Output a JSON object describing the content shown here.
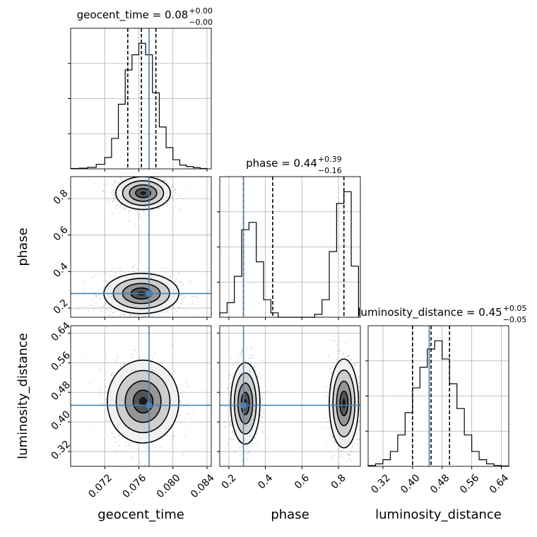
{
  "chart_data": {
    "type": "corner",
    "parameters": [
      "geocent_time",
      "phase",
      "luminosity_distance"
    ],
    "truth": {
      "geocent_time": 0.0772,
      "phase": 0.28,
      "luminosity_distance": 0.445
    },
    "diagonal": [
      {
        "param": "geocent_time",
        "title_prefix": "geocent_time = ",
        "title_value": "0.08",
        "title_plus": "+0.00",
        "title_minus": "−0.00",
        "quantiles": [
          0.0747,
          0.0763,
          0.078
        ],
        "xlim": [
          0.068,
          0.0845
        ],
        "bin_edges": [
          0.068,
          0.069,
          0.07,
          0.071,
          0.072,
          0.0728,
          0.0736,
          0.0744,
          0.0752,
          0.076,
          0.0768,
          0.0776,
          0.0784,
          0.0792,
          0.08,
          0.0808,
          0.0816,
          0.0824,
          0.0832,
          0.084
        ],
        "counts": [
          0.5,
          1,
          2,
          6,
          15,
          40,
          85,
          130,
          150,
          165,
          150,
          100,
          55,
          28,
          12,
          5,
          3,
          1.5,
          0.5
        ]
      },
      {
        "param": "phase",
        "title_prefix": "phase = ",
        "title_value": "0.44",
        "title_plus": "+0.39",
        "title_minus": "−0.16",
        "quantiles": [
          0.28,
          0.44,
          0.83
        ],
        "xlim": [
          0.15,
          0.92
        ],
        "bin_edges": [
          0.15,
          0.19,
          0.23,
          0.27,
          0.31,
          0.35,
          0.39,
          0.43,
          0.47,
          0.51,
          0.55,
          0.59,
          0.63,
          0.67,
          0.71,
          0.75,
          0.79,
          0.83,
          0.87,
          0.91
        ],
        "counts": [
          3,
          10,
          28,
          60,
          65,
          38,
          12,
          3,
          0,
          0,
          0,
          0,
          0,
          2,
          12,
          45,
          78,
          86,
          35
        ]
      },
      {
        "param": "luminosity_distance",
        "title_prefix": "luminosity_distance = ",
        "title_value": "0.45",
        "title_plus": "+0.05",
        "title_minus": "−0.05",
        "quantiles": [
          0.4,
          0.45,
          0.5
        ],
        "xlim": [
          0.28,
          0.66
        ],
        "bin_edges": [
          0.28,
          0.3,
          0.32,
          0.34,
          0.36,
          0.38,
          0.4,
          0.42,
          0.44,
          0.46,
          0.48,
          0.5,
          0.52,
          0.54,
          0.56,
          0.58,
          0.6,
          0.62,
          0.64,
          0.66
        ],
        "counts": [
          1,
          3,
          8,
          18,
          38,
          65,
          95,
          120,
          142,
          152,
          130,
          100,
          70,
          38,
          18,
          8,
          3,
          1,
          0.5
        ]
      }
    ],
    "panels": [
      {
        "x": "geocent_time",
        "y": "phase",
        "blobs": [
          [
            0.0765,
            0.83,
            0.0016,
            0.045
          ],
          [
            0.0763,
            0.28,
            0.0022,
            0.055
          ]
        ]
      },
      {
        "x": "geocent_time",
        "y": "luminosity_distance",
        "blobs": [
          [
            0.0765,
            0.455,
            0.0021,
            0.056
          ]
        ]
      },
      {
        "x": "phase",
        "y": "luminosity_distance",
        "blobs": [
          [
            0.29,
            0.45,
            0.04,
            0.055
          ],
          [
            0.83,
            0.45,
            0.04,
            0.06
          ]
        ]
      }
    ],
    "axes": {
      "geocent_time": {
        "label": "geocent_time",
        "lim": [
          0.068,
          0.0845
        ],
        "ticks": [
          0.072,
          0.076,
          0.08,
          0.084
        ],
        "tick_labels": [
          "0.072",
          "0.076",
          "0.080",
          "0.084"
        ]
      },
      "phase": {
        "label": "phase",
        "lim": [
          0.15,
          0.92
        ],
        "ticks": [
          0.2,
          0.4,
          0.6,
          0.8
        ],
        "tick_labels": [
          "0.2",
          "0.4",
          "0.6",
          "0.8"
        ]
      },
      "luminosity_distance": {
        "label": "luminosity_distance",
        "lim": [
          0.28,
          0.66
        ],
        "ticks": [
          0.32,
          0.4,
          0.48,
          0.56,
          0.64
        ],
        "tick_labels": [
          "0.32",
          "0.40",
          "0.48",
          "0.56",
          "0.64"
        ]
      }
    },
    "grid": true,
    "colors": {
      "truth": "#4682b4",
      "histogram": "#000000",
      "grid": "#b0b0b0"
    }
  }
}
